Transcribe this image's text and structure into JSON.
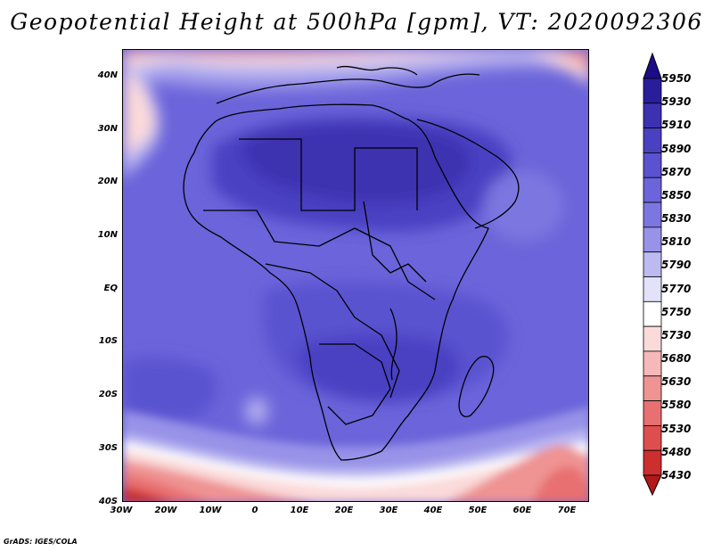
{
  "title": "Geopotential Height at 500hPa [gpm], VT: 2020092306",
  "footer": "GrADS: IGES/COLA",
  "lat_labels": [
    "40N",
    "30N",
    "20N",
    "10N",
    "EQ",
    "10S",
    "20S",
    "30S",
    "40S"
  ],
  "lon_labels": [
    "30W",
    "20W",
    "10W",
    "0",
    "10E",
    "20E",
    "30E",
    "40E",
    "50E",
    "60E",
    "70E"
  ],
  "colorbar": {
    "levels": [
      "5950",
      "5930",
      "5910",
      "5890",
      "5870",
      "5850",
      "5830",
      "5810",
      "5790",
      "5770",
      "5750",
      "5730",
      "5680",
      "5630",
      "5580",
      "5530",
      "5480",
      "5430"
    ],
    "colors": [
      "#1d0c87",
      "#2a1d9b",
      "#3c31b0",
      "#4a40c2",
      "#5a52d0",
      "#6b64da",
      "#7c77e0",
      "#9893e8",
      "#bdb9f1",
      "#e3e2fa",
      "#ffffff",
      "#fbdada",
      "#f6b8b8",
      "#ef9393",
      "#e87070",
      "#de4e4e",
      "#cd2e2e",
      "#b41818"
    ]
  },
  "map": {
    "lon_range": [
      -30,
      75
    ],
    "lat_range": [
      -40,
      45
    ],
    "variable": "Geopotential Height",
    "level": "500hPa",
    "units": "gpm",
    "valid_time": "2020092306"
  }
}
